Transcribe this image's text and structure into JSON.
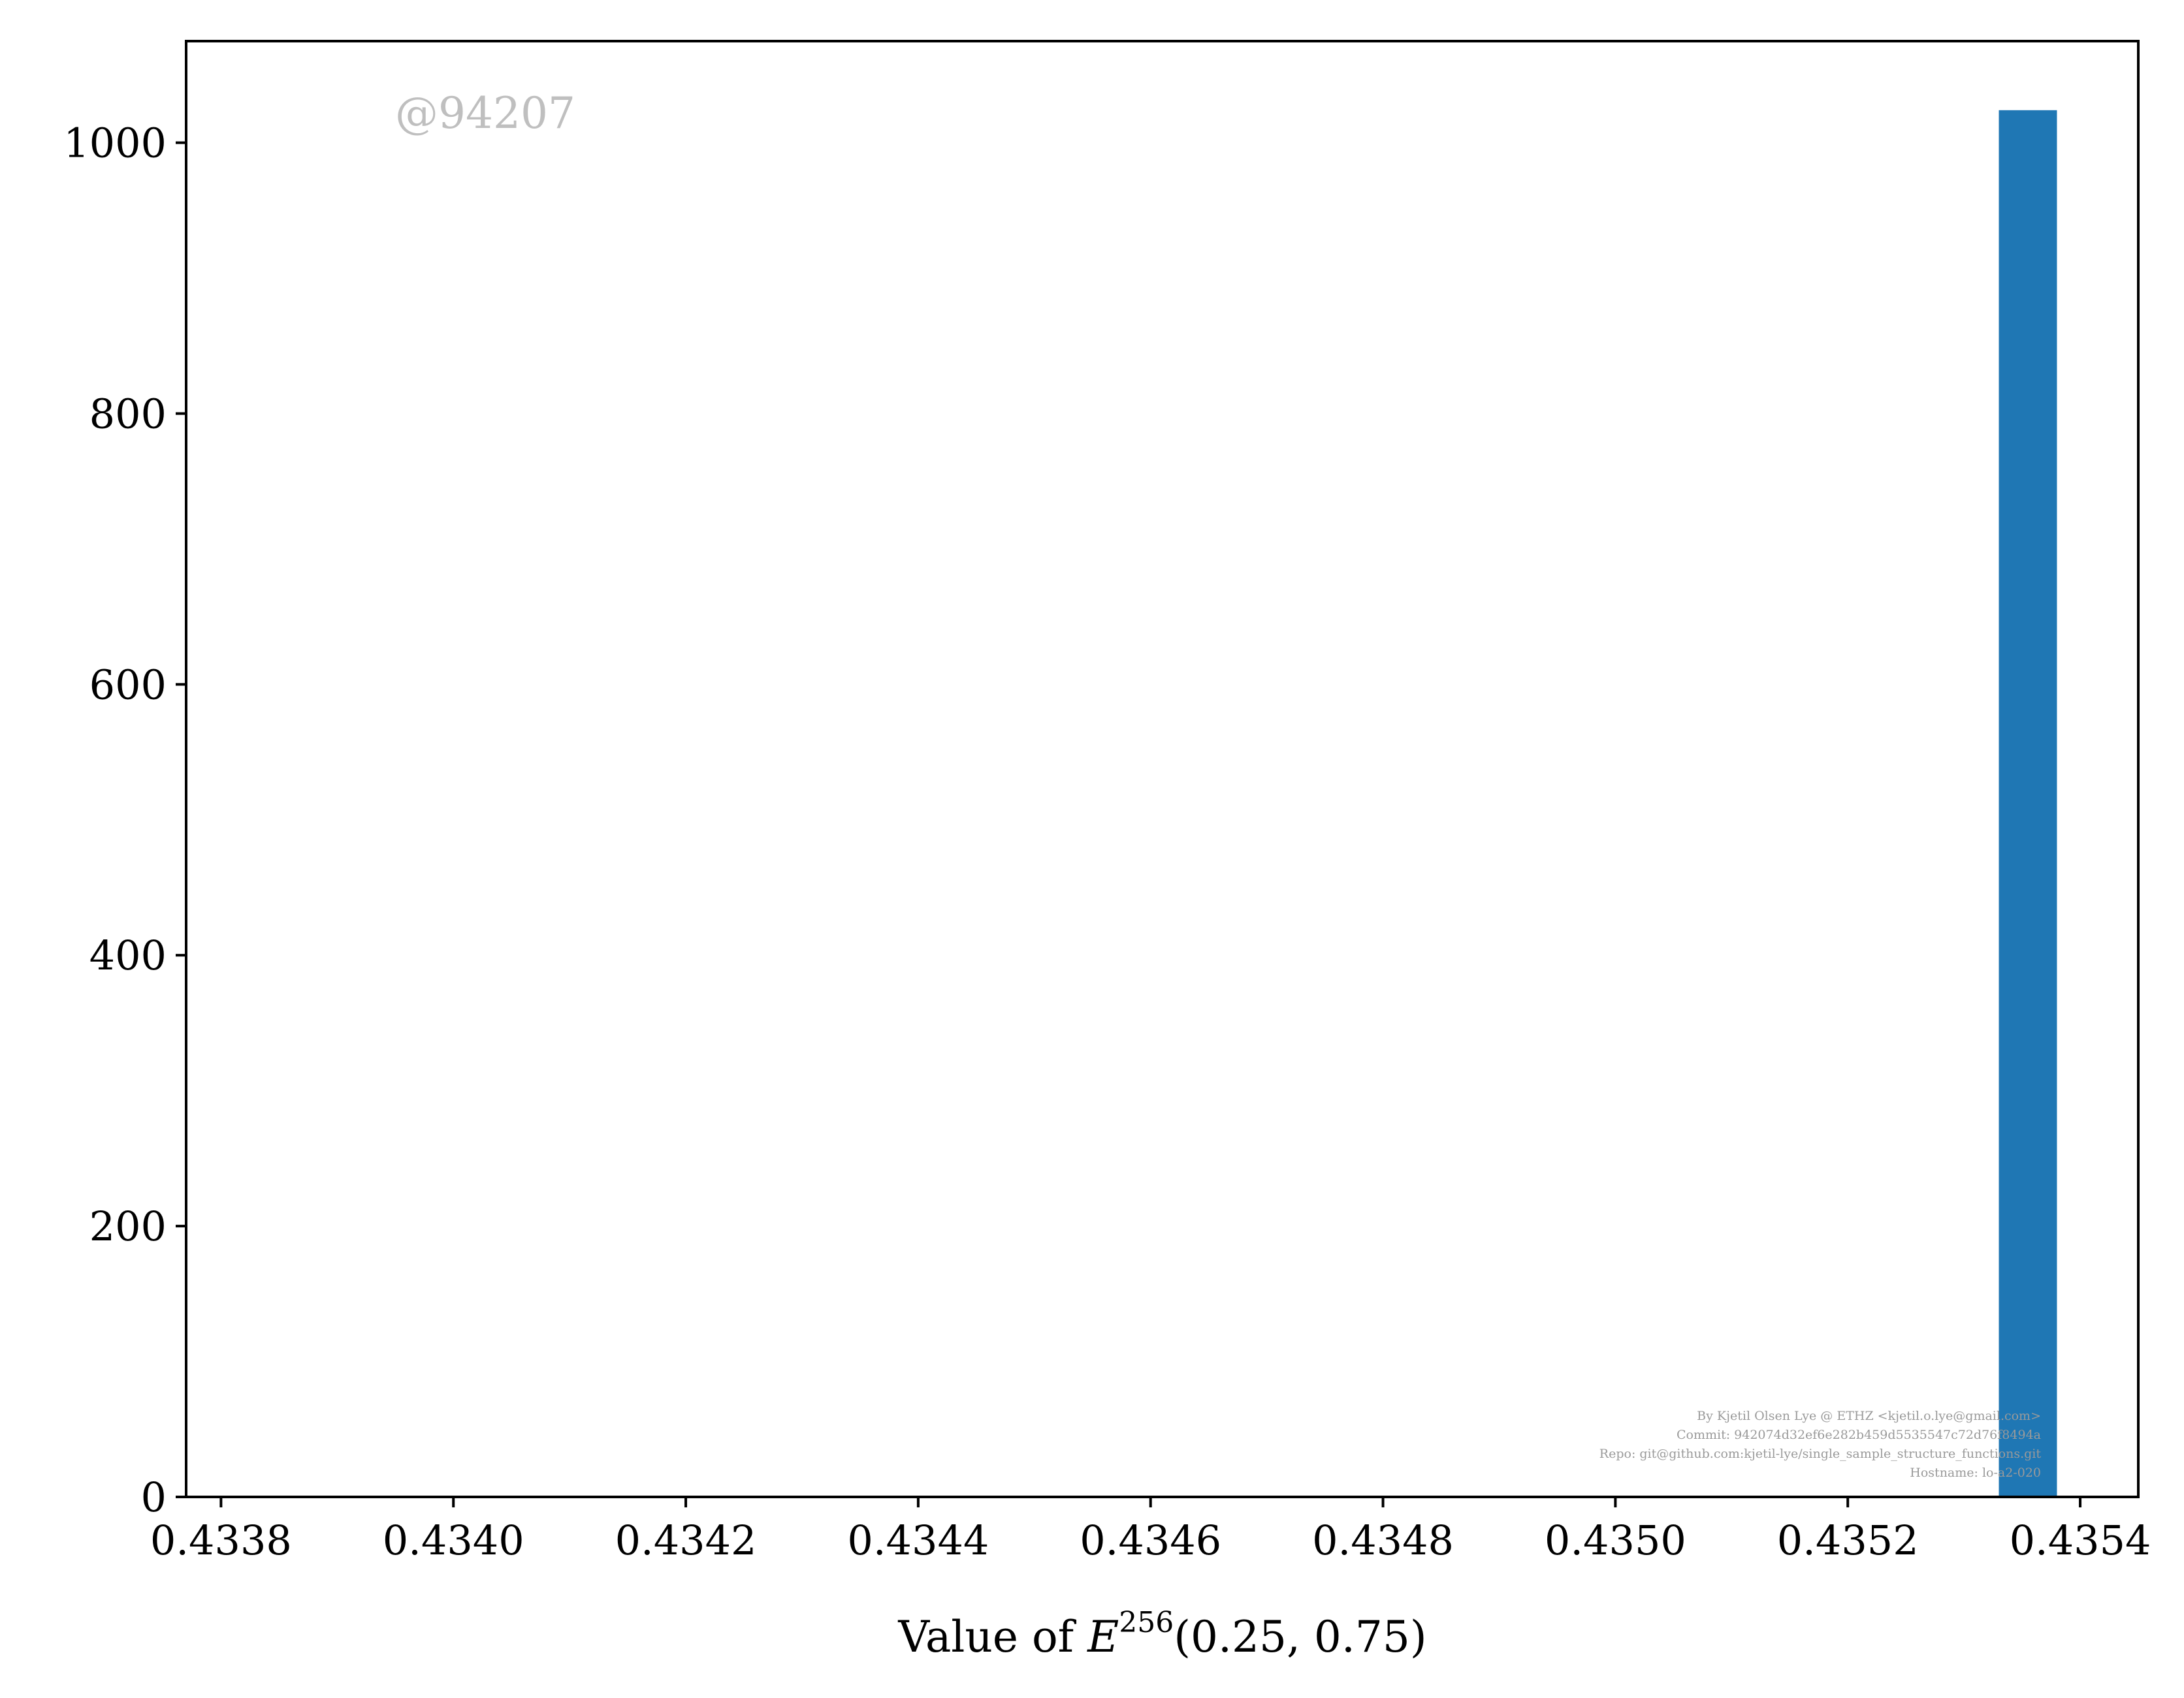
{
  "chart_data": {
    "type": "bar",
    "title": "",
    "xlabel_prefix": "Value of ",
    "xlabel_symbol": "E",
    "xlabel_superscript": "256",
    "xlabel_args": "(0.25, 0.75)",
    "ylabel": "",
    "xlim": [
      0.43377,
      0.43545
    ],
    "ylim": [
      0,
      1075
    ],
    "x_ticks": [
      0.4338,
      0.434,
      0.4342,
      0.4344,
      0.4346,
      0.4348,
      0.435,
      0.4352,
      0.4354
    ],
    "x_tick_labels": [
      "0.4338",
      "0.4340",
      "0.4342",
      "0.4344",
      "0.4346",
      "0.4348",
      "0.4350",
      "0.4352",
      "0.4354"
    ],
    "y_ticks": [
      0,
      200,
      400,
      600,
      800,
      1000
    ],
    "y_tick_labels": [
      "0",
      "200",
      "400",
      "600",
      "800",
      "1000"
    ],
    "bars": [
      {
        "x0": 0.43533,
        "x1": 0.43538,
        "value": 1024
      }
    ],
    "bar_color": "#1f77b4",
    "grid": false
  },
  "watermark": "@94207",
  "credits": [
    "By Kjetil Olsen Lye @ ETHZ <kjetil.o.lye@gmail.com>",
    "Commit: 942074d32ef6e282b459d5535547c72d76f8494a",
    "Repo: git@github.com:kjetil-lye/single_sample_structure_functions.git",
    "Hostname: lo-a2-020"
  ]
}
